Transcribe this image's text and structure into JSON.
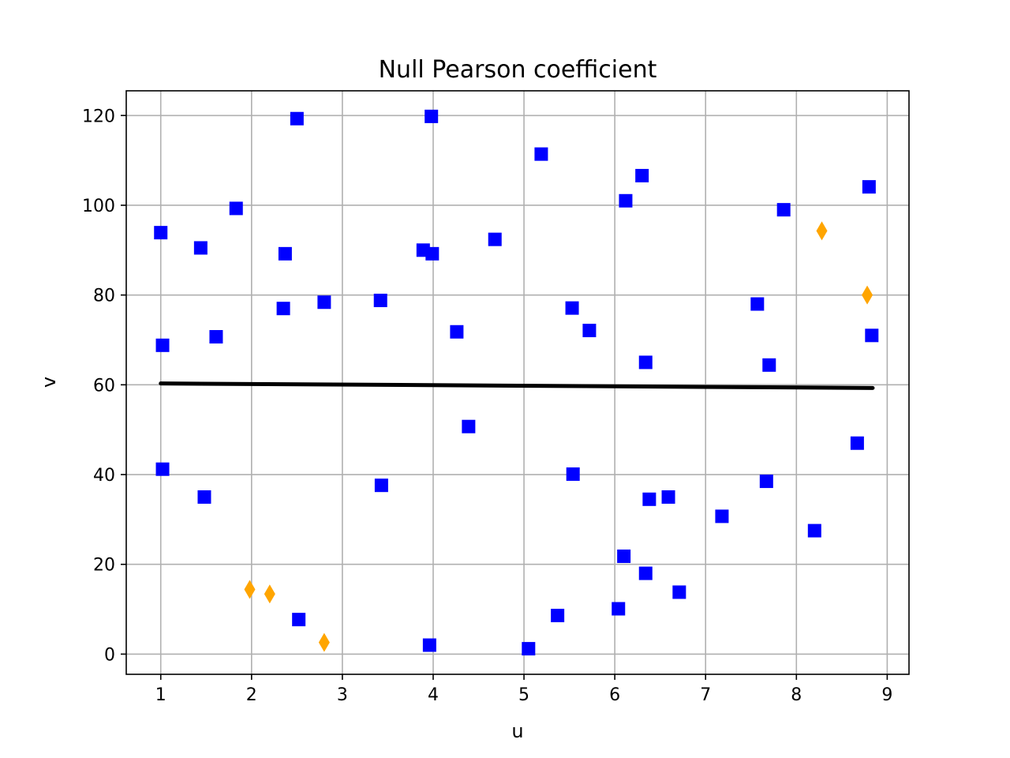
{
  "chart_data": {
    "type": "scatter",
    "title": "Null Pearson coefficient",
    "xlabel": "u",
    "ylabel": "v",
    "xlim": [
      0.62,
      9.24
    ],
    "ylim": [
      -4.5,
      125.5
    ],
    "xticks": [
      1,
      2,
      3,
      4,
      5,
      6,
      7,
      8,
      9
    ],
    "yticks": [
      0,
      20,
      40,
      60,
      80,
      100,
      120
    ],
    "grid": true,
    "legend": "none",
    "series": [
      {
        "marker": "square",
        "color": "#0000ff",
        "points": [
          [
            1.0,
            93.9
          ],
          [
            1.02,
            68.8
          ],
          [
            1.02,
            41.2
          ],
          [
            1.44,
            90.5
          ],
          [
            1.48,
            35.0
          ],
          [
            1.61,
            70.7
          ],
          [
            1.83,
            99.3
          ],
          [
            2.35,
            77.0
          ],
          [
            2.37,
            89.2
          ],
          [
            2.5,
            119.3
          ],
          [
            2.52,
            7.7
          ],
          [
            2.8,
            78.4
          ],
          [
            3.42,
            78.8
          ],
          [
            3.43,
            37.6
          ],
          [
            3.89,
            90.0
          ],
          [
            3.96,
            2.0
          ],
          [
            3.98,
            119.8
          ],
          [
            3.99,
            89.2
          ],
          [
            4.26,
            71.8
          ],
          [
            4.39,
            50.7
          ],
          [
            4.68,
            92.4
          ],
          [
            5.05,
            1.2
          ],
          [
            5.19,
            111.4
          ],
          [
            5.37,
            8.6
          ],
          [
            5.53,
            77.1
          ],
          [
            5.54,
            40.1
          ],
          [
            5.72,
            72.1
          ],
          [
            6.04,
            10.1
          ],
          [
            6.1,
            21.8
          ],
          [
            6.12,
            101.0
          ],
          [
            6.3,
            106.6
          ],
          [
            6.34,
            18.0
          ],
          [
            6.34,
            65.0
          ],
          [
            6.38,
            34.5
          ],
          [
            6.59,
            35.0
          ],
          [
            6.71,
            13.8
          ],
          [
            7.18,
            30.7
          ],
          [
            7.57,
            78.0
          ],
          [
            7.67,
            38.5
          ],
          [
            7.7,
            64.4
          ],
          [
            7.86,
            99.0
          ],
          [
            8.2,
            27.5
          ],
          [
            8.67,
            47.0
          ],
          [
            8.8,
            104.1
          ],
          [
            8.83,
            71.0
          ]
        ]
      },
      {
        "marker": "thin-diamond",
        "color": "#ffa500",
        "points": [
          [
            1.98,
            14.4
          ],
          [
            2.2,
            13.4
          ],
          [
            2.8,
            2.6
          ],
          [
            8.28,
            94.3
          ],
          [
            8.78,
            80.0
          ]
        ]
      }
    ],
    "fit_line": {
      "color": "#000000",
      "points": [
        [
          1.0,
          60.3
        ],
        [
          8.84,
          59.3
        ]
      ]
    }
  }
}
